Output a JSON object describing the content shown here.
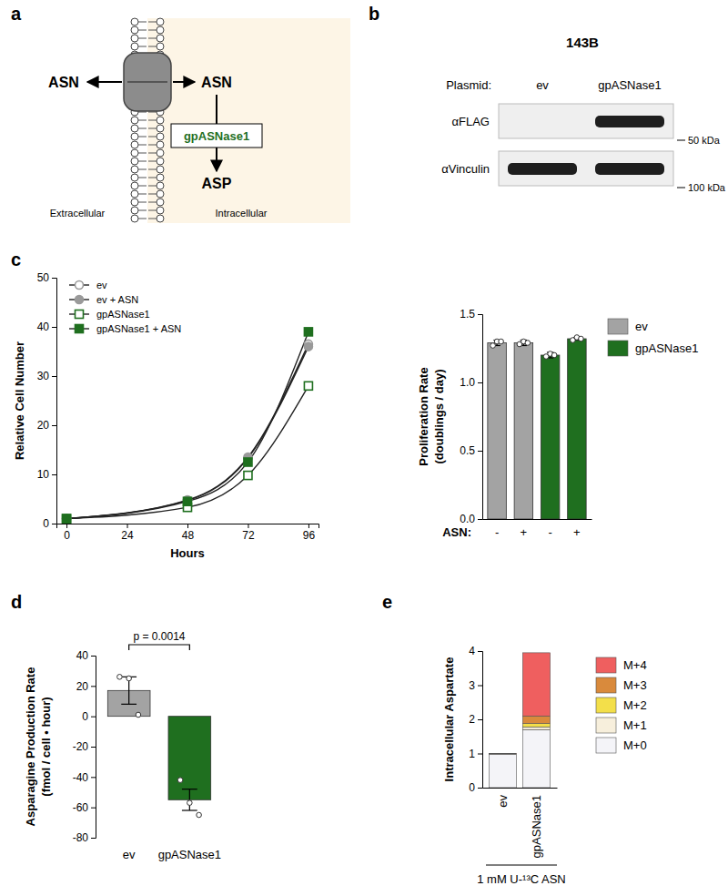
{
  "diagram": {
    "panel_label": "a",
    "outside_molecule": "ASN",
    "inside_molecule": "ASN",
    "enzyme": "gpASNase1",
    "product": "ASP",
    "outside_label": "Extracellular",
    "inside_label": "Intracellular"
  },
  "blot": {
    "panel_label": "b",
    "cell_line": "143B",
    "lane_header": "Plasmid:",
    "lanes": [
      "ev",
      "gpASNase1"
    ],
    "rows": [
      {
        "antibody": "αFLAG",
        "size_label": "50 kDa",
        "bands": [
          false,
          true
        ]
      },
      {
        "antibody": "αVinculin",
        "size_label": "100 kDa",
        "bands": [
          true,
          true
        ]
      }
    ]
  },
  "chart_data": [
    {
      "panel_label": "c",
      "type": "line",
      "xlabel": "Hours",
      "ylabel": "Relative Cell Number",
      "x": [
        0,
        48,
        72,
        96
      ],
      "xlim": [
        -4,
        100
      ],
      "xticks": [
        0,
        24,
        48,
        72,
        96
      ],
      "ylim": [
        0,
        50
      ],
      "yticks": [
        0,
        10,
        20,
        30,
        40,
        50
      ],
      "legend": "upper left",
      "series": [
        {
          "name": "ev",
          "color": "#9a9a9a",
          "marker": "open-circle",
          "values": [
            1,
            4.8,
            13.5,
            36.5
          ]
        },
        {
          "name": "ev + ASN",
          "color": "#9a9a9a",
          "marker": "circle",
          "values": [
            1,
            4.7,
            13.3,
            36
          ]
        },
        {
          "name": "gpASNase1",
          "color": "#1f6f1f",
          "marker": "open-square",
          "values": [
            1,
            3.3,
            9.8,
            28
          ]
        },
        {
          "name": "gpASNase1 + ASN",
          "color": "#1f6f1f",
          "marker": "square",
          "values": [
            1,
            4.5,
            12.5,
            39
          ]
        }
      ]
    },
    {
      "type": "bar",
      "ylabel": [
        "Proliferation Rate",
        "(doublings / day)"
      ],
      "xlabel": "ASN:",
      "categories": [
        "-",
        "+",
        "-",
        "+"
      ],
      "ylim": [
        0,
        1.5
      ],
      "yticks": [
        {
          "value": 0,
          "label": "0.0"
        },
        0.5,
        {
          "value": 1,
          "label": "1.0"
        },
        {
          "value": 1.5,
          "label": "1.5"
        }
      ],
      "legend": "right",
      "series": [
        {
          "name": "ev",
          "color": "#a3a3a3",
          "values": [
            1.29,
            1.29,
            null,
            null
          ],
          "error": [
            0.02,
            0.02,
            null,
            null
          ],
          "points": [
            [
              1.27,
              1.3,
              1.3
            ],
            [
              1.28,
              1.3,
              1.29
            ],
            null,
            null
          ]
        },
        {
          "name": "gpASNase1",
          "color": "#1f6f1f",
          "values": [
            null,
            null,
            1.2,
            1.32
          ],
          "error": [
            null,
            null,
            0.02,
            0.01
          ],
          "points": [
            null,
            null,
            [
              1.19,
              1.21,
              1.2
            ],
            [
              1.31,
              1.33,
              1.32
            ]
          ]
        }
      ]
    },
    {
      "panel_label": "d",
      "type": "bar",
      "ylabel": [
        "Asparagine Production Rate",
        "(fmol / cell • hour)"
      ],
      "categories": [
        "ev",
        "gpASNase1"
      ],
      "values": [
        17,
        -55
      ],
      "error": [
        9,
        7
      ],
      "points": [
        [
          26,
          25,
          1
        ],
        [
          -42,
          -57,
          -65
        ]
      ],
      "colors": [
        "#a3a3a3",
        "#1f6f1f"
      ],
      "ylim": [
        -80,
        40
      ],
      "yticks": [
        -80,
        -60,
        -40,
        -20,
        0,
        20,
        40
      ],
      "annotation": "p = 0.0014"
    },
    {
      "panel_label": "e",
      "type": "bar",
      "stacked": true,
      "ylabel": "Intracellular Aspartate",
      "xlabel": "1 mM U-¹³C ASN",
      "categories": [
        "ev",
        "gpASNase1"
      ],
      "ylim": [
        0,
        4
      ],
      "yticks": [
        0,
        1,
        2,
        3,
        4
      ],
      "legend": "right",
      "series": [
        {
          "name": "M+0",
          "color": "#f4f4f8",
          "values": [
            0.98,
            1.7
          ]
        },
        {
          "name": "M+1",
          "color": "#f7efdc",
          "values": [
            0.01,
            0.08
          ]
        },
        {
          "name": "M+2",
          "color": "#f3df4a",
          "values": [
            0,
            0.1
          ]
        },
        {
          "name": "M+3",
          "color": "#d98a3c",
          "values": [
            0,
            0.22
          ]
        },
        {
          "name": "M+4",
          "color": "#ef5f5f",
          "values": [
            0.01,
            1.85
          ]
        }
      ]
    }
  ]
}
